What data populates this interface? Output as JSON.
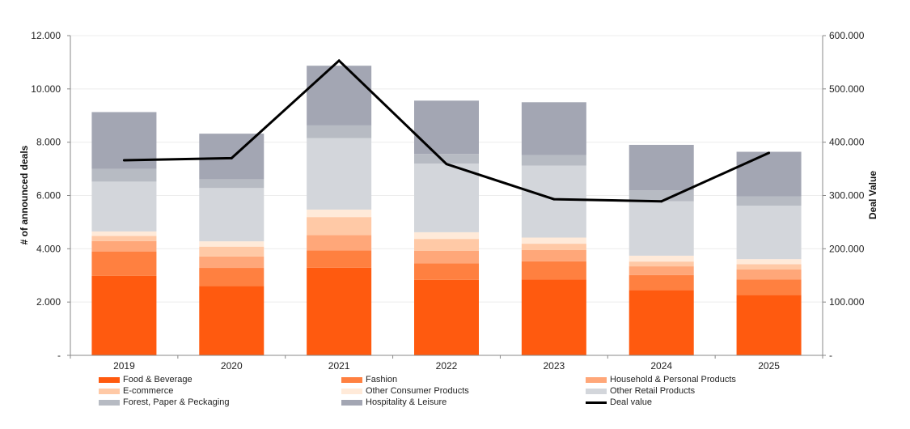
{
  "chart_data": {
    "type": "bar",
    "stacked": true,
    "categories": [
      "2019",
      "2020",
      "2021",
      "2022",
      "2023",
      "2024",
      "2025"
    ],
    "series": [
      {
        "name": "Food & Beverage",
        "color": "#FF5A0F",
        "values": [
          2980,
          2600,
          3290,
          2830,
          2850,
          2450,
          2270
        ]
      },
      {
        "name": "Fashion",
        "color": "#FF8040",
        "values": [
          920,
          680,
          650,
          620,
          680,
          560,
          580
        ]
      },
      {
        "name": "Household & Personal Products",
        "color": "#FFA779",
        "values": [
          390,
          430,
          570,
          470,
          420,
          330,
          370
        ]
      },
      {
        "name": "E-commerce",
        "color": "#FFC9A6",
        "values": [
          190,
          370,
          680,
          450,
          240,
          180,
          200
        ]
      },
      {
        "name": "Other Consumer Products",
        "color": "#FFEAD9",
        "values": [
          170,
          200,
          280,
          250,
          230,
          220,
          190
        ]
      },
      {
        "name": "Other Retail Products",
        "color": "#D3D6DB",
        "values": [
          1870,
          2000,
          2680,
          2580,
          2700,
          2040,
          2010
        ]
      },
      {
        "name": "Forest, Paper & Peckaging",
        "color": "#B7BBC3",
        "values": [
          480,
          330,
          480,
          360,
          400,
          410,
          340
        ]
      },
      {
        "name": "Hospitality & Leisure",
        "color": "#A3A6B3",
        "values": [
          2130,
          1710,
          2240,
          2000,
          1980,
          1710,
          1680
        ]
      }
    ],
    "line_series": {
      "name": "Deal value",
      "color": "#000000",
      "axis": "right",
      "values": [
        366000,
        370000,
        553000,
        359000,
        293000,
        289000,
        380000
      ]
    },
    "title": "",
    "xlabel": "",
    "ylabel": "# of announced deals",
    "y2label": "Deal Value",
    "ylim": [
      0,
      12000
    ],
    "y2lim": [
      0,
      600000
    ],
    "yticks": [
      "-",
      "2.000",
      "4.000",
      "6.000",
      "8.000",
      "10.000",
      "12.000"
    ],
    "y2ticks": [
      "-",
      "100.000",
      "200.000",
      "300.000",
      "400.000",
      "500.000",
      "600.000"
    ],
    "grid": true,
    "legend_position": "bottom"
  },
  "legend": {
    "items": [
      {
        "label": "Food & Beverage",
        "color": "#FF5A0F",
        "kind": "swatch"
      },
      {
        "label": "Fashion",
        "color": "#FF8040",
        "kind": "swatch"
      },
      {
        "label": "Household & Personal Products",
        "color": "#FFA779",
        "kind": "swatch"
      },
      {
        "label": "E-commerce",
        "color": "#FFC9A6",
        "kind": "swatch"
      },
      {
        "label": "Other Consumer Products",
        "color": "#FFEAD9",
        "kind": "swatch"
      },
      {
        "label": "Other Retail Products",
        "color": "#D3D6DB",
        "kind": "swatch"
      },
      {
        "label": "Forest, Paper & Peckaging",
        "color": "#B7BBC3",
        "kind": "swatch"
      },
      {
        "label": "Hospitality & Leisure",
        "color": "#A3A6B3",
        "kind": "swatch"
      },
      {
        "label": "Deal value",
        "color": "#000000",
        "kind": "line"
      }
    ]
  }
}
